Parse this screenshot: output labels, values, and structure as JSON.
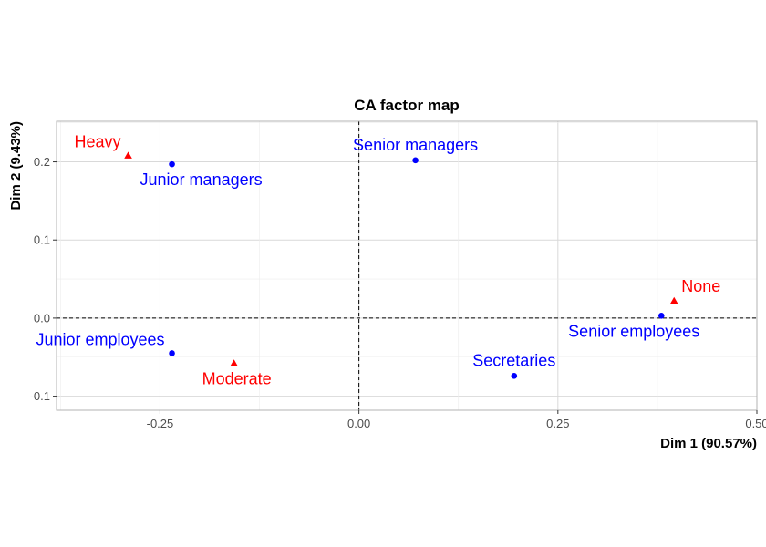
{
  "chart_data": {
    "type": "scatter",
    "title": "CA factor map",
    "xlabel": "Dim 1 (90.57%)",
    "ylabel": "Dim 2 (9.43%)",
    "xlim": [
      -0.38,
      0.5
    ],
    "ylim": [
      -0.118,
      0.252
    ],
    "x_ticks": [
      -0.25,
      0.0,
      0.25,
      0.5
    ],
    "x_tick_labels": [
      "-0.25",
      "0.00",
      "0.25",
      "0.50"
    ],
    "y_ticks": [
      -0.1,
      0.0,
      0.1,
      0.2
    ],
    "y_tick_labels": [
      "-0.1",
      "0.0",
      "0.1",
      "0.2"
    ],
    "grid": true,
    "reference_lines": {
      "x": 0,
      "y": 0,
      "style": "dashed"
    },
    "colors": {
      "rows": "#0000ff",
      "columns": "#ff0000",
      "grid": "#d9d9d9",
      "panel_border": "#b3b3b3"
    },
    "series": [
      {
        "color": "#0000ff",
        "marker": "circle",
        "points": [
          {
            "label": "Junior managers",
            "x": -0.235,
            "y": 0.197,
            "label_anchor": "below-right"
          },
          {
            "label": "Senior managers",
            "x": 0.071,
            "y": 0.202,
            "label_anchor": "above"
          },
          {
            "label": "Junior employees",
            "x": -0.235,
            "y": -0.045,
            "label_anchor": "above-left"
          },
          {
            "label": "Secretaries",
            "x": 0.195,
            "y": -0.074,
            "label_anchor": "above"
          },
          {
            "label": "Senior employees",
            "x": 0.38,
            "y": 0.003,
            "label_anchor": "below-left"
          }
        ]
      },
      {
        "color": "#ff0000",
        "marker": "triangle",
        "points": [
          {
            "label": "Heavy",
            "x": -0.29,
            "y": 0.208,
            "label_anchor": "above-left"
          },
          {
            "label": "Moderate",
            "x": -0.157,
            "y": -0.058,
            "label_anchor": "below-right"
          },
          {
            "label": "None",
            "x": 0.396,
            "y": 0.022,
            "label_anchor": "above-right"
          }
        ]
      }
    ]
  }
}
